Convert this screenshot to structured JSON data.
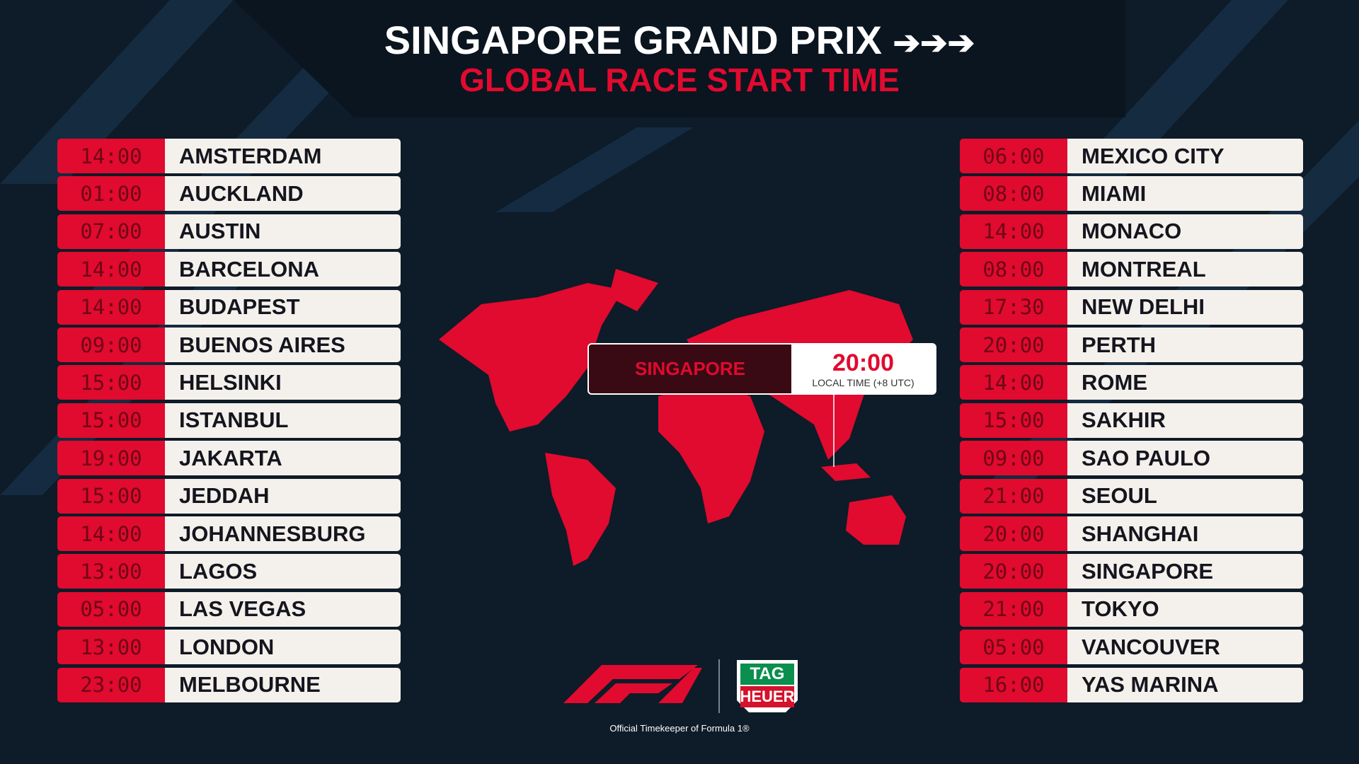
{
  "header": {
    "title": "SINGAPORE GRAND PRIX",
    "subtitle": "GLOBAL RACE START TIME"
  },
  "left_list": [
    {
      "time": "14:00",
      "city": "AMSTERDAM"
    },
    {
      "time": "01:00",
      "city": "AUCKLAND"
    },
    {
      "time": "07:00",
      "city": "AUSTIN"
    },
    {
      "time": "14:00",
      "city": "BARCELONA"
    },
    {
      "time": "14:00",
      "city": "BUDAPEST"
    },
    {
      "time": "09:00",
      "city": "BUENOS AIRES"
    },
    {
      "time": "15:00",
      "city": "HELSINKI"
    },
    {
      "time": "15:00",
      "city": "ISTANBUL"
    },
    {
      "time": "19:00",
      "city": "JAKARTA"
    },
    {
      "time": "15:00",
      "city": "JEDDAH"
    },
    {
      "time": "14:00",
      "city": "JOHANNESBURG"
    },
    {
      "time": "13:00",
      "city": "LAGOS"
    },
    {
      "time": "05:00",
      "city": "LAS VEGAS"
    },
    {
      "time": "13:00",
      "city": "LONDON"
    },
    {
      "time": "23:00",
      "city": "MELBOURNE"
    }
  ],
  "right_list": [
    {
      "time": "06:00",
      "city": "MEXICO CITY"
    },
    {
      "time": "08:00",
      "city": "MIAMI"
    },
    {
      "time": "14:00",
      "city": "MONACO"
    },
    {
      "time": "08:00",
      "city": "MONTREAL"
    },
    {
      "time": "17:30",
      "city": "NEW DELHI"
    },
    {
      "time": "20:00",
      "city": "PERTH"
    },
    {
      "time": "14:00",
      "city": "ROME"
    },
    {
      "time": "15:00",
      "city": "SAKHIR"
    },
    {
      "time": "09:00",
      "city": "SAO PAULO"
    },
    {
      "time": "21:00",
      "city": "SEOUL"
    },
    {
      "time": "20:00",
      "city": "SHANGHAI"
    },
    {
      "time": "20:00",
      "city": "SINGAPORE"
    },
    {
      "time": "21:00",
      "city": "TOKYO"
    },
    {
      "time": "05:00",
      "city": "VANCOUVER"
    },
    {
      "time": "16:00",
      "city": "YAS MARINA"
    }
  ],
  "callout": {
    "city": "SINGAPORE",
    "time": "20:00",
    "note": "LOCAL TIME (+8 UTC)"
  },
  "footer": {
    "logo_top": "TAG",
    "logo_bottom": "HEUER",
    "caption": "Official Timekeeper of Formula 1®"
  }
}
